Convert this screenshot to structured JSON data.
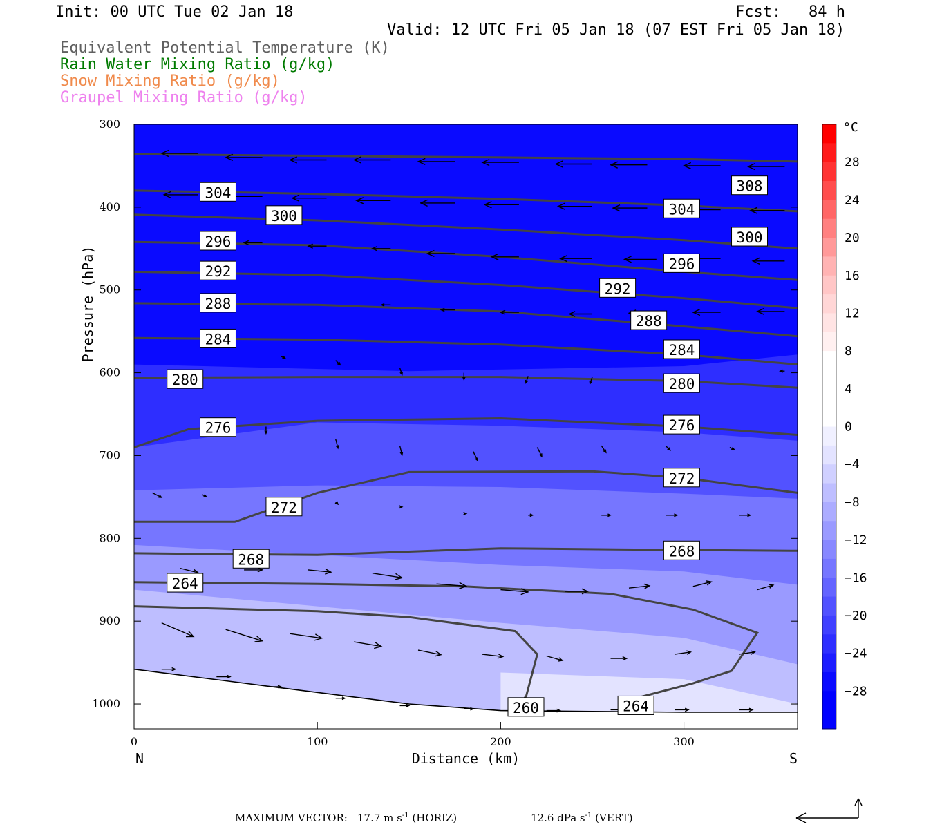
{
  "header": {
    "init": "Init: 00 UTC Tue 02 Jan 18",
    "fcst": "Fcst:   84 h",
    "valid": "Valid: 12 UTC Fri 05 Jan 18 (07 EST Fri 05 Jan 18)"
  },
  "legend": [
    {
      "label": "Equivalent Potential Temperature (K)",
      "color": "#606060"
    },
    {
      "label": "Rain Water Mixing Ratio (g/kg)",
      "color": "#007a00"
    },
    {
      "label": "Snow Mixing Ratio (g/kg)",
      "color": "#f08a4b"
    },
    {
      "label": "Graupel Mixing Ratio (g/kg)",
      "color": "#ee82ee"
    }
  ],
  "footer": {
    "max_vector_label": "MAXIMUM VECTOR:",
    "horiz_value": "17.7 m s",
    "horiz_exp": "-1",
    "horiz_tag": "(HORIZ)",
    "vert_value": "12.6 dPa s",
    "vert_exp": "-1",
    "vert_tag": "(VERT)"
  },
  "chart_data": {
    "type": "cross-section",
    "xlabel": "Distance (km)",
    "ylabel": "Pressure (hPa)",
    "xlim": [
      0,
      362
    ],
    "ylim": [
      300,
      1030
    ],
    "y_inverted": true,
    "x_ticks": [
      0,
      100,
      200,
      300
    ],
    "y_ticks": [
      300,
      400,
      500,
      600,
      700,
      800,
      900,
      1000
    ],
    "x_end_labels": {
      "left": "N",
      "right": "S"
    },
    "colorbar": {
      "unit": "°C",
      "tick_labels": [
        "28",
        "24",
        "20",
        "16",
        "12",
        "8",
        "4",
        "0",
        "−4",
        "−8",
        "−12",
        "−16",
        "−20",
        "−24",
        "−28"
      ],
      "tick_values": [
        28,
        24,
        20,
        16,
        12,
        8,
        4,
        0,
        -4,
        -8,
        -12,
        -16,
        -20,
        -24,
        -28
      ],
      "levels": [
        32,
        30,
        28,
        26,
        24,
        22,
        20,
        18,
        16,
        14,
        12,
        10,
        8,
        6,
        4,
        2,
        0,
        -2,
        -4,
        -6,
        -8,
        -10,
        -12,
        -14,
        -16,
        -18,
        -20,
        -22,
        -24,
        -26,
        -28,
        -30,
        -32
      ],
      "colors": [
        "#ff0000",
        "#ff1a1a",
        "#ff3333",
        "#ff4d4d",
        "#ff6666",
        "#ff8080",
        "#ff9999",
        "#ffb3b3",
        "#ffc6c6",
        "#ffd6d6",
        "#ffe4e4",
        "#fff0f0",
        "#ffffff",
        "#ffffff",
        "#ffffff",
        "#ffffff",
        "#f0f0ff",
        "#e3e3ff",
        "#d0d0ff",
        "#bebeff",
        "#acacff",
        "#9a9aff",
        "#8888ff",
        "#7676ff",
        "#6464ff",
        "#5252ff",
        "#4040ff",
        "#2e2eff",
        "#1c1cff",
        "#0a0aff",
        "#0000ff",
        "#0000ff"
      ]
    },
    "temperature_bands": [
      {
        "level": -28,
        "boundary": [
          [
            0,
            300
          ],
          [
            362,
            300
          ]
        ]
      },
      {
        "level": -24,
        "boundary": [
          [
            0,
            590
          ],
          [
            150,
            598
          ],
          [
            300,
            592
          ],
          [
            362,
            578
          ]
        ]
      },
      {
        "level": -20,
        "boundary": [
          [
            0,
            690
          ],
          [
            100,
            660
          ],
          [
            200,
            664
          ],
          [
            300,
            672
          ],
          [
            362,
            682
          ]
        ]
      },
      {
        "level": -16,
        "boundary": [
          [
            0,
            742
          ],
          [
            100,
            736
          ],
          [
            200,
            738
          ],
          [
            300,
            746
          ],
          [
            362,
            752
          ]
        ]
      },
      {
        "level": -12,
        "boundary": [
          [
            0,
            808
          ],
          [
            100,
            820
          ],
          [
            200,
            832
          ],
          [
            300,
            840
          ],
          [
            362,
            856
          ]
        ]
      },
      {
        "level": -8,
        "boundary": [
          [
            0,
            862
          ],
          [
            100,
            882
          ],
          [
            200,
            902
          ],
          [
            300,
            920
          ],
          [
            362,
            952
          ]
        ]
      },
      {
        "level": -4,
        "boundary": [
          [
            200,
            962
          ],
          [
            300,
            970
          ],
          [
            362,
            1000
          ]
        ]
      }
    ],
    "ground": [
      [
        0,
        958
      ],
      [
        50,
        972
      ],
      [
        100,
        986
      ],
      [
        150,
        1000
      ],
      [
        200,
        1008
      ],
      [
        250,
        1009
      ],
      [
        300,
        1010
      ],
      [
        362,
        1010
      ]
    ],
    "theta_e_contours": [
      {
        "value": 308,
        "points": [
          [
            0,
            336
          ],
          [
            100,
            338
          ],
          [
            200,
            340
          ],
          [
            300,
            342
          ],
          [
            362,
            345
          ]
        ],
        "labels": [
          [
            326,
            374
          ]
        ]
      },
      {
        "value": 304,
        "points": [
          [
            0,
            380
          ],
          [
            100,
            384
          ],
          [
            200,
            390
          ],
          [
            300,
            398
          ],
          [
            362,
            405
          ]
        ],
        "labels": [
          [
            36,
            382
          ],
          [
            289,
            402
          ]
        ]
      },
      {
        "value": 300,
        "points": [
          [
            0,
            409
          ],
          [
            100,
            416
          ],
          [
            200,
            427
          ],
          [
            300,
            440
          ],
          [
            362,
            450
          ]
        ],
        "labels": [
          [
            72,
            410
          ],
          [
            326,
            436
          ]
        ]
      },
      {
        "value": 296,
        "points": [
          [
            0,
            442
          ],
          [
            100,
            446
          ],
          [
            200,
            460
          ],
          [
            300,
            478
          ],
          [
            362,
            488
          ]
        ],
        "labels": [
          [
            36,
            441
          ],
          [
            289,
            468
          ]
        ]
      },
      {
        "value": 292,
        "points": [
          [
            0,
            478
          ],
          [
            100,
            482
          ],
          [
            200,
            494
          ],
          [
            300,
            510
          ],
          [
            362,
            522
          ]
        ],
        "labels": [
          [
            36,
            477
          ],
          [
            254,
            498
          ]
        ]
      },
      {
        "value": 288,
        "points": [
          [
            0,
            516
          ],
          [
            100,
            518
          ],
          [
            200,
            526
          ],
          [
            300,
            544
          ],
          [
            362,
            556
          ]
        ],
        "labels": [
          [
            36,
            516
          ],
          [
            271,
            537
          ]
        ]
      },
      {
        "value": 284,
        "points": [
          [
            0,
            558
          ],
          [
            100,
            560
          ],
          [
            200,
            566
          ],
          [
            300,
            578
          ],
          [
            362,
            590
          ]
        ],
        "labels": [
          [
            36,
            559
          ],
          [
            289,
            572
          ]
        ]
      },
      {
        "value": 280,
        "points": [
          [
            0,
            606
          ],
          [
            100,
            605
          ],
          [
            200,
            605
          ],
          [
            300,
            610
          ],
          [
            362,
            618
          ]
        ],
        "labels": [
          [
            18,
            608
          ],
          [
            289,
            613
          ]
        ]
      },
      {
        "value": 276,
        "points": [
          [
            0,
            690
          ],
          [
            30,
            668
          ],
          [
            100,
            658
          ],
          [
            200,
            655
          ],
          [
            300,
            665
          ],
          [
            362,
            675
          ]
        ],
        "labels": [
          [
            36,
            666
          ],
          [
            289,
            663
          ]
        ]
      },
      {
        "value": 272,
        "points": [
          [
            0,
            780
          ],
          [
            55,
            780
          ],
          [
            100,
            745
          ],
          [
            150,
            720
          ],
          [
            250,
            719
          ],
          [
            300,
            727
          ],
          [
            362,
            745
          ]
        ],
        "labels": [
          [
            72,
            762
          ],
          [
            289,
            727
          ]
        ]
      },
      {
        "value": 268,
        "points": [
          [
            0,
            818
          ],
          [
            100,
            820
          ],
          [
            200,
            812
          ],
          [
            300,
            814
          ],
          [
            362,
            815
          ]
        ],
        "labels": [
          [
            54,
            825
          ],
          [
            289,
            815
          ]
        ]
      },
      {
        "value": 264,
        "points": [
          [
            0,
            853
          ],
          [
            100,
            855
          ],
          [
            180,
            858
          ],
          [
            260,
            867
          ],
          [
            305,
            886
          ],
          [
            340,
            914
          ],
          [
            326,
            960
          ],
          [
            305,
            975
          ],
          [
            265,
            998
          ]
        ],
        "labels": [
          [
            18,
            854
          ],
          [
            264,
            1002
          ]
        ]
      },
      {
        "value": 260,
        "points": [
          [
            0,
            882
          ],
          [
            100,
            888
          ],
          [
            150,
            895
          ],
          [
            208,
            912
          ],
          [
            220,
            940
          ],
          [
            214,
            990
          ],
          [
            210,
            1002
          ]
        ],
        "labels": [
          [
            204,
            1004
          ]
        ]
      }
    ],
    "wind_vectors": [
      {
        "x": 35,
        "p": 335,
        "u": -16,
        "w": 0
      },
      {
        "x": 70,
        "p": 340,
        "u": -16,
        "w": 0
      },
      {
        "x": 105,
        "p": 343,
        "u": -16,
        "w": 0
      },
      {
        "x": 140,
        "p": 343,
        "u": -16,
        "w": 0
      },
      {
        "x": 175,
        "p": 345,
        "u": -16,
        "w": 0
      },
      {
        "x": 210,
        "p": 346,
        "u": -16,
        "w": 0
      },
      {
        "x": 250,
        "p": 348,
        "u": -16,
        "w": 0
      },
      {
        "x": 280,
        "p": 349,
        "u": -16,
        "w": 0
      },
      {
        "x": 320,
        "p": 350,
        "u": -16,
        "w": 0
      },
      {
        "x": 355,
        "p": 351,
        "u": -16,
        "w": 0
      },
      {
        "x": 35,
        "p": 385,
        "u": -15,
        "w": 0
      },
      {
        "x": 70,
        "p": 387,
        "u": -15,
        "w": 0
      },
      {
        "x": 105,
        "p": 389,
        "u": -15,
        "w": 0
      },
      {
        "x": 140,
        "p": 392,
        "u": -15,
        "w": 0
      },
      {
        "x": 175,
        "p": 395,
        "u": -15,
        "w": 0
      },
      {
        "x": 210,
        "p": 397,
        "u": -15,
        "w": 0
      },
      {
        "x": 250,
        "p": 399,
        "u": -15,
        "w": 0
      },
      {
        "x": 280,
        "p": 401,
        "u": -15,
        "w": 0
      },
      {
        "x": 320,
        "p": 403,
        "u": -15,
        "w": 0
      },
      {
        "x": 355,
        "p": 404,
        "u": -15,
        "w": 0
      },
      {
        "x": 70,
        "p": 443,
        "u": -8,
        "w": 0
      },
      {
        "x": 105,
        "p": 447,
        "u": -8,
        "w": 0
      },
      {
        "x": 140,
        "p": 450,
        "u": -8,
        "w": 0
      },
      {
        "x": 175,
        "p": 456,
        "u": -12,
        "w": 0
      },
      {
        "x": 210,
        "p": 460,
        "u": -12,
        "w": 0
      },
      {
        "x": 250,
        "p": 462,
        "u": -14,
        "w": 0
      },
      {
        "x": 285,
        "p": 463,
        "u": -14,
        "w": 0
      },
      {
        "x": 320,
        "p": 462,
        "u": -14,
        "w": 0
      },
      {
        "x": 355,
        "p": 465,
        "u": -14,
        "w": 0
      },
      {
        "x": 140,
        "p": 518,
        "u": -4,
        "w": 0
      },
      {
        "x": 175,
        "p": 524,
        "u": -6,
        "w": 0
      },
      {
        "x": 210,
        "p": 527,
        "u": -8,
        "w": 0
      },
      {
        "x": 250,
        "p": 529,
        "u": -10,
        "w": 0
      },
      {
        "x": 285,
        "p": 528,
        "u": -12,
        "w": 0
      },
      {
        "x": 320,
        "p": 527,
        "u": -12,
        "w": 0
      },
      {
        "x": 355,
        "p": 526,
        "u": -12,
        "w": 0
      },
      {
        "x": 80,
        "p": 580,
        "u": 2,
        "w": 1
      },
      {
        "x": 110,
        "p": 585,
        "u": 2,
        "w": 2
      },
      {
        "x": 145,
        "p": 594,
        "u": 1,
        "w": 3
      },
      {
        "x": 180,
        "p": 600,
        "u": 0,
        "w": 3
      },
      {
        "x": 215,
        "p": 604,
        "u": -1,
        "w": 3
      },
      {
        "x": 250,
        "p": 605,
        "u": -1,
        "w": 3
      },
      {
        "x": 355,
        "p": 598,
        "u": -2,
        "w": 0
      },
      {
        "x": 72,
        "p": 665,
        "u": 0,
        "w": 3
      },
      {
        "x": 110,
        "p": 680,
        "u": 1,
        "w": 4
      },
      {
        "x": 145,
        "p": 688,
        "u": 1,
        "w": 4
      },
      {
        "x": 185,
        "p": 695,
        "u": 2,
        "w": 4
      },
      {
        "x": 220,
        "p": 690,
        "u": 2,
        "w": 4
      },
      {
        "x": 255,
        "p": 688,
        "u": 2,
        "w": 3
      },
      {
        "x": 290,
        "p": 688,
        "u": 2,
        "w": 2
      },
      {
        "x": 325,
        "p": 690,
        "u": 2,
        "w": 1
      },
      {
        "x": 10,
        "p": 745,
        "u": 4,
        "w": 2
      },
      {
        "x": 37,
        "p": 747,
        "u": 2,
        "w": 1
      },
      {
        "x": 110,
        "p": 756,
        "u": 1,
        "w": 1
      },
      {
        "x": 145,
        "p": 762,
        "u": 1,
        "w": 0
      },
      {
        "x": 180,
        "p": 770,
        "u": 1,
        "w": 0
      },
      {
        "x": 215,
        "p": 772,
        "u": 2,
        "w": 0
      },
      {
        "x": 255,
        "p": 772,
        "u": 4,
        "w": 0
      },
      {
        "x": 290,
        "p": 772,
        "u": 5,
        "w": 0
      },
      {
        "x": 330,
        "p": 772,
        "u": 5,
        "w": 0
      },
      {
        "x": 25,
        "p": 836,
        "u": 8,
        "w": 2
      },
      {
        "x": 60,
        "p": 838,
        "u": 8,
        "w": 0
      },
      {
        "x": 95,
        "p": 838,
        "u": 10,
        "w": 1
      },
      {
        "x": 130,
        "p": 842,
        "u": 13,
        "w": 2
      },
      {
        "x": 165,
        "p": 855,
        "u": 13,
        "w": 1
      },
      {
        "x": 200,
        "p": 862,
        "u": 12,
        "w": 1
      },
      {
        "x": 235,
        "p": 864,
        "u": 10,
        "w": 0
      },
      {
        "x": 270,
        "p": 860,
        "u": 9,
        "w": -1
      },
      {
        "x": 305,
        "p": 858,
        "u": 8,
        "w": -2
      },
      {
        "x": 340,
        "p": 862,
        "u": 7,
        "w": -2
      },
      {
        "x": 15,
        "p": 902,
        "u": 14,
        "w": 6
      },
      {
        "x": 50,
        "p": 910,
        "u": 16,
        "w": 5
      },
      {
        "x": 85,
        "p": 915,
        "u": 14,
        "w": 2
      },
      {
        "x": 120,
        "p": 925,
        "u": 12,
        "w": 2
      },
      {
        "x": 155,
        "p": 935,
        "u": 10,
        "w": 2
      },
      {
        "x": 190,
        "p": 940,
        "u": 9,
        "w": 1
      },
      {
        "x": 225,
        "p": 942,
        "u": 7,
        "w": 2
      },
      {
        "x": 260,
        "p": 945,
        "u": 7,
        "w": 0
      },
      {
        "x": 295,
        "p": 940,
        "u": 7,
        "w": -1
      },
      {
        "x": 330,
        "p": 940,
        "u": 7,
        "w": -1
      },
      {
        "x": 15,
        "p": 958,
        "u": 6,
        "w": 0
      },
      {
        "x": 45,
        "p": 967,
        "u": 6,
        "w": 0
      },
      {
        "x": 75,
        "p": 979,
        "u": 4,
        "w": 0
      },
      {
        "x": 110,
        "p": 993,
        "u": 4,
        "w": 0
      },
      {
        "x": 145,
        "p": 1002,
        "u": 4,
        "w": 0
      },
      {
        "x": 180,
        "p": 1006,
        "u": 4,
        "w": 0
      },
      {
        "x": 225,
        "p": 1008,
        "u": 6,
        "w": 0
      },
      {
        "x": 260,
        "p": 1007,
        "u": 6,
        "w": 0
      },
      {
        "x": 295,
        "p": 1007,
        "u": 6,
        "w": 0
      },
      {
        "x": 330,
        "p": 1007,
        "u": 6,
        "w": 0
      }
    ]
  }
}
